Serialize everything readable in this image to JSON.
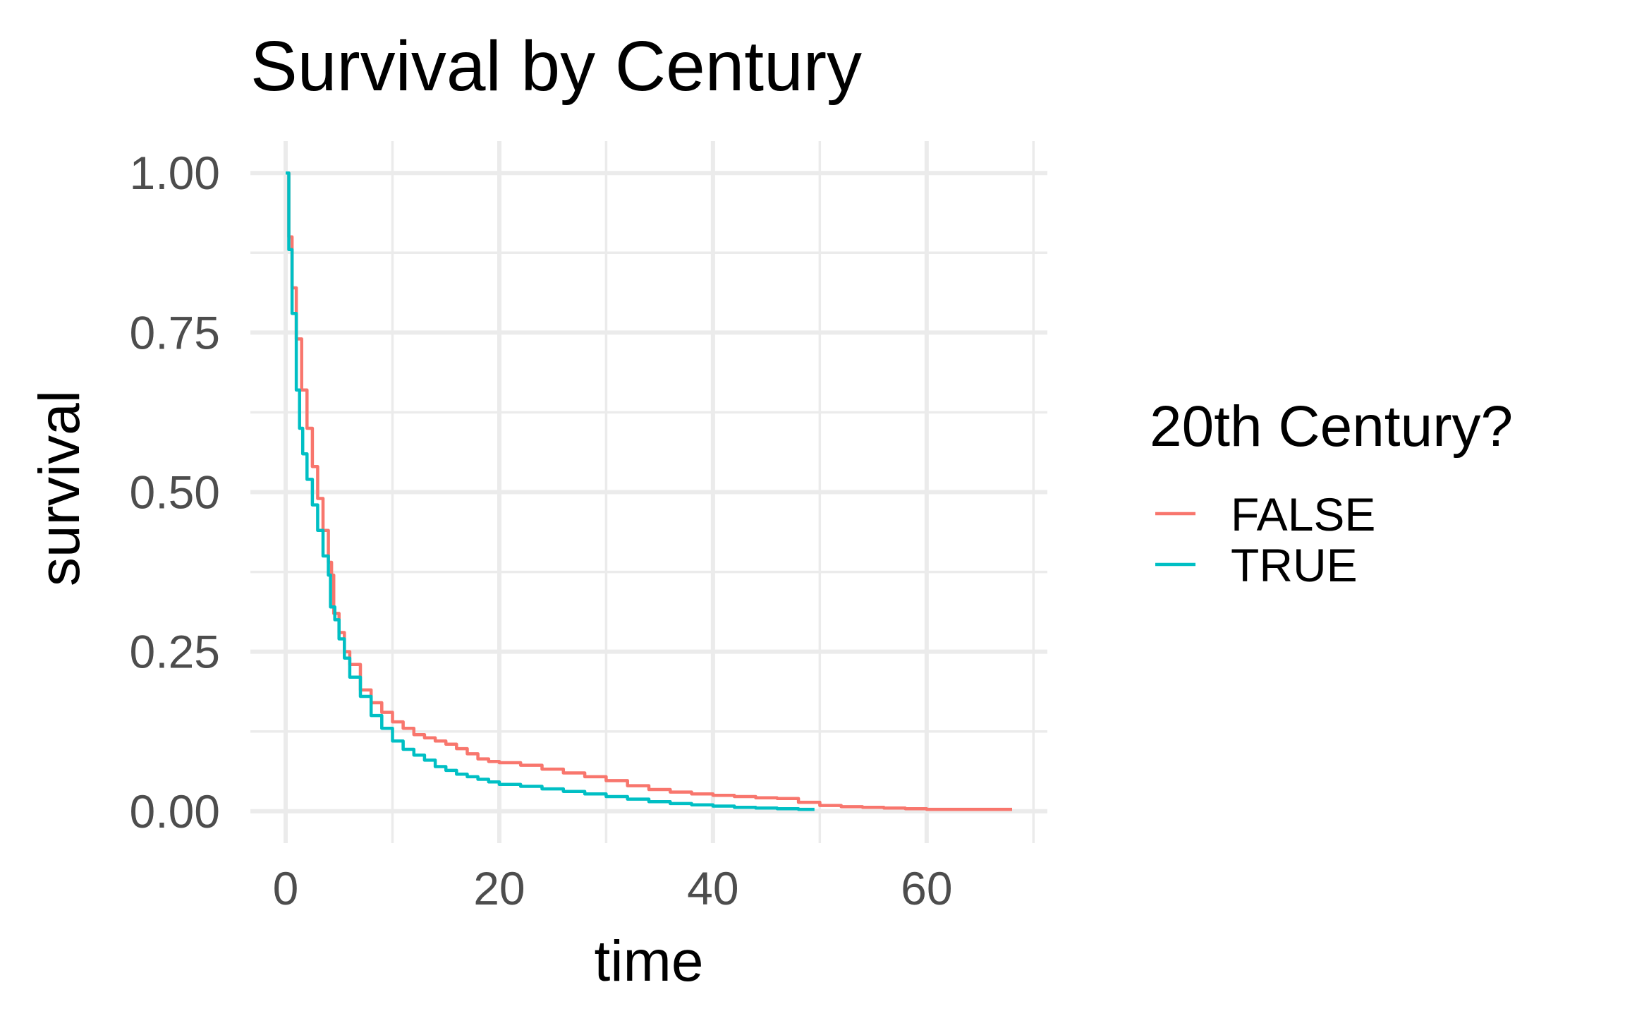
{
  "chart_data": {
    "type": "line",
    "step": true,
    "title": "Survival by Century",
    "xlabel": "time",
    "ylabel": "survival",
    "xlim": [
      -3.3,
      71.3
    ],
    "ylim": [
      -0.05,
      1.05
    ],
    "x_ticks": [
      0,
      20,
      40,
      60
    ],
    "x_tick_labels": [
      "0",
      "20",
      "40",
      "60"
    ],
    "y_ticks": [
      0,
      0.25,
      0.5,
      0.75,
      1
    ],
    "y_tick_labels": [
      "0.00",
      "0.25",
      "0.50",
      "0.75",
      "1.00"
    ],
    "x_minor": [
      10,
      30,
      50,
      70
    ],
    "y_minor": [
      0.125,
      0.375,
      0.625,
      0.875
    ],
    "grid": true,
    "legend": {
      "title": "20th Century?",
      "position": "right"
    },
    "series": [
      {
        "name": "FALSE",
        "color": "#F8766D",
        "points": [
          [
            0,
            1.0
          ],
          [
            0.3,
            0.9
          ],
          [
            0.6,
            0.82
          ],
          [
            1.0,
            0.74
          ],
          [
            1.5,
            0.66
          ],
          [
            2.0,
            0.6
          ],
          [
            2.5,
            0.54
          ],
          [
            3.0,
            0.49
          ],
          [
            3.5,
            0.44
          ],
          [
            4.0,
            0.39
          ],
          [
            4.3,
            0.37
          ],
          [
            4.5,
            0.31
          ],
          [
            5.0,
            0.28
          ],
          [
            5.5,
            0.25
          ],
          [
            6.0,
            0.23
          ],
          [
            7.0,
            0.19
          ],
          [
            8.0,
            0.17
          ],
          [
            9.0,
            0.155
          ],
          [
            10.0,
            0.14
          ],
          [
            11.0,
            0.13
          ],
          [
            12.0,
            0.12
          ],
          [
            13.0,
            0.115
          ],
          [
            14.0,
            0.11
          ],
          [
            15.0,
            0.105
          ],
          [
            16.0,
            0.098
          ],
          [
            17.0,
            0.09
          ],
          [
            18.0,
            0.082
          ],
          [
            19.0,
            0.078
          ],
          [
            20.0,
            0.076
          ],
          [
            22.0,
            0.072
          ],
          [
            24.0,
            0.066
          ],
          [
            26.0,
            0.06
          ],
          [
            28.0,
            0.054
          ],
          [
            30.0,
            0.048
          ],
          [
            32.0,
            0.04
          ],
          [
            34.0,
            0.034
          ],
          [
            36.0,
            0.03
          ],
          [
            38.0,
            0.027
          ],
          [
            40.0,
            0.025
          ],
          [
            42.0,
            0.023
          ],
          [
            44.0,
            0.021
          ],
          [
            46.0,
            0.02
          ],
          [
            48.0,
            0.014
          ],
          [
            50.0,
            0.009
          ],
          [
            52.0,
            0.007
          ],
          [
            54.0,
            0.006
          ],
          [
            56.0,
            0.005
          ],
          [
            58.0,
            0.004
          ],
          [
            60.0,
            0.003
          ],
          [
            64.0,
            0.003
          ],
          [
            68.0,
            0.003
          ]
        ]
      },
      {
        "name": "TRUE",
        "color": "#00BFC4",
        "points": [
          [
            0,
            1.0
          ],
          [
            0.3,
            0.88
          ],
          [
            0.6,
            0.78
          ],
          [
            1.0,
            0.66
          ],
          [
            1.3,
            0.6
          ],
          [
            1.6,
            0.56
          ],
          [
            2.0,
            0.52
          ],
          [
            2.5,
            0.48
          ],
          [
            3.0,
            0.44
          ],
          [
            3.5,
            0.4
          ],
          [
            4.0,
            0.37
          ],
          [
            4.2,
            0.32
          ],
          [
            4.6,
            0.3
          ],
          [
            5.0,
            0.27
          ],
          [
            5.5,
            0.24
          ],
          [
            6.0,
            0.21
          ],
          [
            7.0,
            0.18
          ],
          [
            8.0,
            0.15
          ],
          [
            9.0,
            0.13
          ],
          [
            10.0,
            0.11
          ],
          [
            11.0,
            0.097
          ],
          [
            12.0,
            0.088
          ],
          [
            13.0,
            0.08
          ],
          [
            14.0,
            0.07
          ],
          [
            15.0,
            0.064
          ],
          [
            16.0,
            0.058
          ],
          [
            17.0,
            0.054
          ],
          [
            18.0,
            0.05
          ],
          [
            19.0,
            0.046
          ],
          [
            20.0,
            0.042
          ],
          [
            22.0,
            0.039
          ],
          [
            24.0,
            0.035
          ],
          [
            26.0,
            0.031
          ],
          [
            28.0,
            0.027
          ],
          [
            30.0,
            0.023
          ],
          [
            32.0,
            0.019
          ],
          [
            34.0,
            0.015
          ],
          [
            36.0,
            0.012
          ],
          [
            38.0,
            0.01
          ],
          [
            40.0,
            0.008
          ],
          [
            42.0,
            0.006
          ],
          [
            44.0,
            0.005
          ],
          [
            46.0,
            0.004
          ],
          [
            48.0,
            0.003
          ],
          [
            49.5,
            0.003
          ]
        ]
      }
    ]
  }
}
